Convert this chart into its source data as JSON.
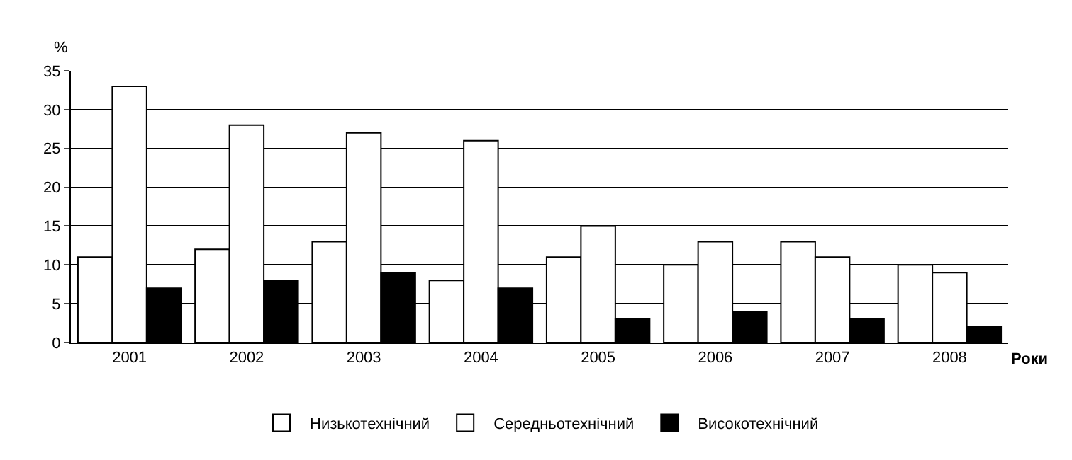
{
  "chart_data": {
    "type": "bar",
    "ylabel": "%",
    "xlabel": "Роки",
    "categories": [
      "2001",
      "2002",
      "2003",
      "2004",
      "2005",
      "2006",
      "2007",
      "2008"
    ],
    "series": [
      {
        "name": "Низькотехнічний",
        "color": "#ffffff",
        "values": [
          11,
          12,
          13,
          8,
          11,
          10,
          13,
          10
        ]
      },
      {
        "name": "Середньотехнічний",
        "color": "#ffffff",
        "values": [
          33,
          28,
          27,
          26,
          15,
          13,
          11,
          9
        ]
      },
      {
        "name": "Високотехнічний",
        "color": "#000000",
        "values": [
          7,
          8,
          9,
          7,
          3,
          4,
          3,
          2
        ]
      }
    ],
    "ylim": [
      0,
      35
    ],
    "yticks": [
      0,
      5,
      10,
      15,
      20,
      25,
      30,
      35
    ],
    "grid": "y",
    "legend": "bottom"
  }
}
